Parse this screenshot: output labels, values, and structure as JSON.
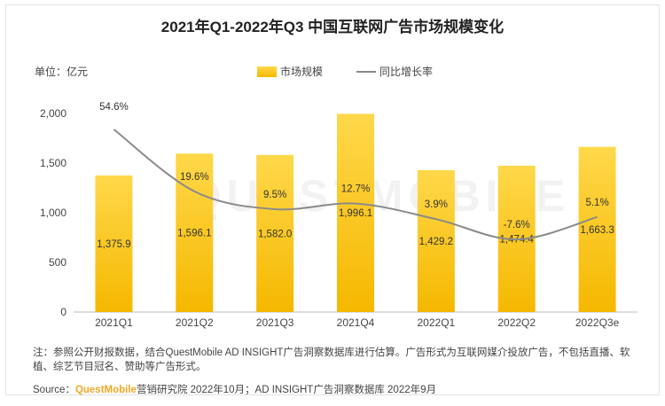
{
  "header": {
    "title": "2021年Q1-2022年Q3 中国互联网广告市场规模变化",
    "unit": "单位：亿元"
  },
  "legend": {
    "bar_label": "市场规模",
    "line_label": "同比增长率"
  },
  "watermark": "QUESTMOBILE",
  "colors": {
    "bar_top": "#ffd84a",
    "bar_bottom": "#f5b800",
    "line": "#8a8a8a",
    "brand": "#f5a623"
  },
  "chart_data": {
    "type": "bar",
    "categories": [
      "2021Q1",
      "2021Q2",
      "2021Q3",
      "2021Q4",
      "2022Q1",
      "2022Q2",
      "2022Q3e"
    ],
    "series": [
      {
        "name": "市场规模",
        "type": "bar",
        "values": [
          1375.9,
          1596.1,
          1582.0,
          1996.1,
          1429.2,
          1474.4,
          1663.3
        ],
        "labels": [
          "1,375.9",
          "1,596.1",
          "1,582.0",
          "1,996.1",
          "1,429.2",
          "1,474.4",
          "1,663.3"
        ]
      },
      {
        "name": "同比增长率",
        "type": "line",
        "values": [
          54.6,
          19.6,
          9.5,
          12.7,
          3.9,
          -7.6,
          5.1
        ],
        "labels": [
          "54.6%",
          "19.6%",
          "9.5%",
          "12.7%",
          "3.9%",
          "-7.6%",
          "5.1%"
        ]
      }
    ],
    "y_ticks": [
      "0",
      "500",
      "1,000",
      "1,500",
      "2,000"
    ],
    "ylim": [
      0,
      2000
    ],
    "legend_position": "top"
  },
  "footer": {
    "note": "注：参照公开财报数据，结合QuestMobile AD INSIGHT广告洞察数据库进行估算。广告形式为互联网媒介投放广告，不包括直播、软植、综艺节目冠名、赞助等广告形式。",
    "source_prefix": "Source：",
    "source_brand": "QuestMobile",
    "source_rest": "营销研究院 2022年10月；AD INSIGHT广告洞察数据库 2022年9月"
  }
}
